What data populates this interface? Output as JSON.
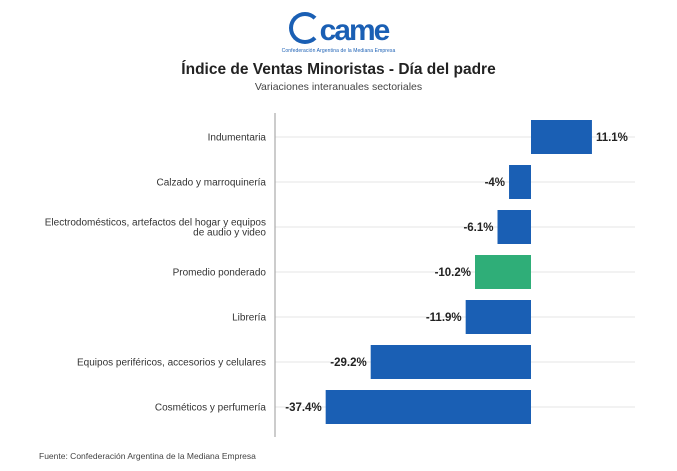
{
  "logo": {
    "text": "came",
    "subtitle": "Confederación Argentina de la Mediana Empresa"
  },
  "colors": {
    "bar": "#1a5fb4",
    "highlight": "#2fae78",
    "grid": "#e6e6e6",
    "axis": "#999999"
  },
  "chart_data": {
    "type": "bar",
    "orientation": "horizontal",
    "title": "Índice de Ventas Minoristas - Día del padre",
    "subtitle": "Variaciones interanuales sectoriales",
    "categories": [
      [
        "Indumentaria"
      ],
      [
        "Calzado y marroquinería"
      ],
      [
        "Electrodomésticos, artefactos del hogar y equipos",
        "de audio y video"
      ],
      [
        "Promedio ponderado"
      ],
      [
        "Librería"
      ],
      [
        "Equipos periféricos, accesorios y celulares"
      ],
      [
        "Cosméticos y perfumería"
      ]
    ],
    "values": [
      11.1,
      -4,
      -6.1,
      -10.2,
      -11.9,
      -29.2,
      -37.4
    ],
    "labels": [
      "11.1%",
      "-4%",
      "-6.1%",
      "-10.2%",
      "-11.9%",
      "-29.2%",
      "-37.4%"
    ],
    "highlight_index": 3,
    "xlim": [
      -45,
      20
    ],
    "xlabel": "",
    "ylabel": "",
    "grid": true
  },
  "source": "Fuente: Confederación Argentina de la Mediana Empresa"
}
